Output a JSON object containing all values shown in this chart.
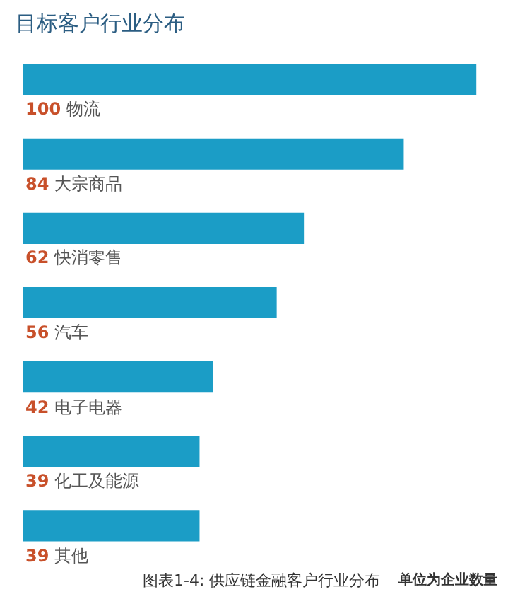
{
  "chart_data": {
    "type": "bar",
    "orientation": "horizontal",
    "title": "目标客户行业分布",
    "categories": [
      "物流",
      "大宗商品",
      "快消零售",
      "汽车",
      "电子电器",
      "化工及能源",
      "其他"
    ],
    "values": [
      100,
      84,
      62,
      56,
      42,
      39,
      39
    ],
    "color": "#1b9dc6",
    "tick_labels": false,
    "grid": false,
    "legend": false,
    "data_labels": true,
    "annotations": [
      "图表1-4: 供应链金融客户行业分布",
      "单位为企业数量"
    ]
  }
}
